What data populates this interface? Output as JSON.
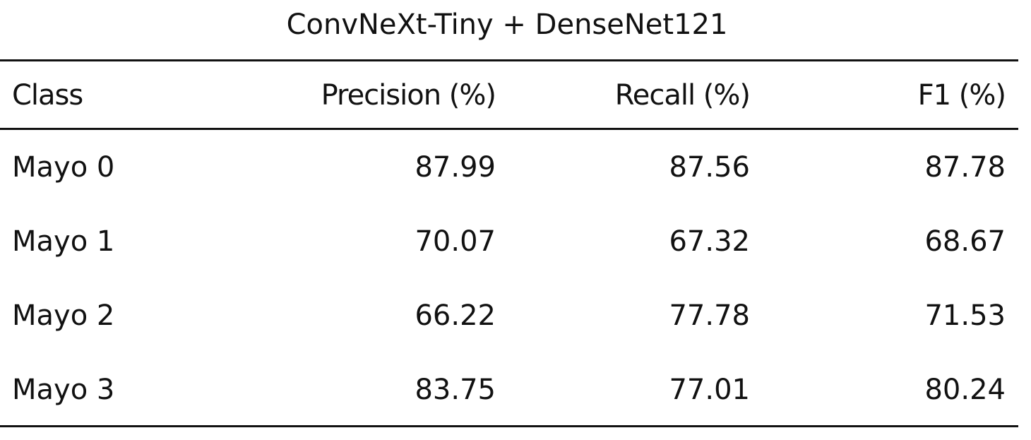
{
  "table": {
    "title": "ConvNeXt-Tiny + DenseNet121",
    "header": [
      "Class",
      "Precision (%)",
      "Recall (%)",
      "F1 (%)"
    ],
    "rows": [
      [
        "Mayo 0",
        "87.99",
        "87.56",
        "87.78"
      ],
      [
        "Mayo 1",
        "70.07",
        "67.32",
        "68.67"
      ],
      [
        "Mayo 2",
        "66.22",
        "77.78",
        "71.53"
      ],
      [
        "Mayo 3",
        "83.75",
        "77.01",
        "80.24"
      ]
    ]
  }
}
